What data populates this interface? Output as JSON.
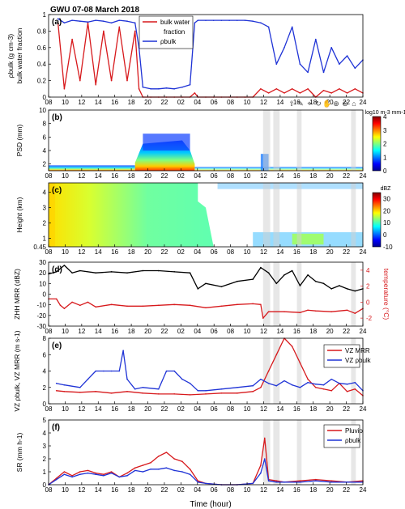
{
  "title": "GWU 07-08 March 2018",
  "colors": {
    "red": "#d7191c",
    "blue": "#1f33d6",
    "black": "#000000",
    "frame": "#000000",
    "grid": "#9a9a9a",
    "shade": "#cfcfcf"
  },
  "xaxis": {
    "label": "Time (hour)",
    "ticks": [
      "08",
      "10",
      "12",
      "14",
      "16",
      "18",
      "20",
      "22",
      "02",
      "04",
      "06",
      "08",
      "10",
      "12",
      "14",
      "16",
      "18",
      "20",
      "22",
      "24"
    ],
    "range_hours": [
      8,
      48
    ]
  },
  "shade_bands_hours": [
    [
      35.3,
      36.2
    ],
    [
      36.6,
      37.4
    ],
    [
      39.6,
      40.2
    ],
    [
      46.5,
      47.1
    ]
  ],
  "toolbar_icons": [
    "export-icon",
    "brush-icon",
    "datatip-icon",
    "rotate-icon",
    "pan-icon",
    "zoom-in-icon",
    "zoom-out-icon",
    "home-icon"
  ],
  "chart_data": [
    {
      "type": "line",
      "panel": "(a)",
      "ylabel_line1": "ρbulk (g cm-3)",
      "ylabel_line2": "bulk water fraction",
      "ylim": [
        0,
        1
      ],
      "yticks": [
        "0",
        "0.2",
        "0.4",
        "0.6",
        "0.8",
        "1"
      ],
      "legend": {
        "placement": "top",
        "entries": [
          {
            "name": "bulk water",
            "name2": "fraction",
            "color": "#d7191c"
          },
          {
            "name": "ρbulk",
            "color": "#1f33d6"
          }
        ]
      },
      "series": [
        {
          "name": "bulk water fraction",
          "color": "#d7191c",
          "x": [
            9.2,
            10,
            11,
            12,
            13,
            14,
            15,
            16,
            17,
            18,
            19,
            19.5,
            20,
            21,
            22,
            23,
            24,
            25,
            26,
            26.6,
            27,
            28,
            29,
            30,
            31,
            32,
            33,
            34,
            35,
            36,
            37,
            38,
            39,
            40,
            41,
            42,
            43,
            44,
            45,
            46,
            47,
            48
          ],
          "y": [
            0.9,
            0.1,
            0.7,
            0.2,
            0.9,
            0.15,
            0.8,
            0.2,
            0.85,
            0.2,
            0.8,
            0.1,
            0,
            0,
            0,
            0,
            0,
            0,
            0,
            0.05,
            0,
            0,
            0,
            0,
            0,
            0,
            0,
            0,
            0.1,
            0.05,
            0.1,
            0.05,
            0.1,
            0.05,
            0.1,
            0,
            0.08,
            0.05,
            0.1,
            0.05,
            0.1,
            0.05
          ]
        },
        {
          "name": "ρbulk",
          "color": "#1f33d6",
          "x": [
            9.2,
            10,
            11,
            12,
            13,
            14,
            15,
            16,
            17,
            18,
            19,
            19.5,
            20,
            21,
            22,
            23,
            24,
            25,
            26,
            26.6,
            27,
            28,
            29,
            30,
            31,
            32,
            33,
            34,
            35,
            36,
            37,
            38,
            39,
            40,
            41,
            42,
            43,
            44,
            45,
            46,
            47,
            48
          ],
          "y": [
            0.95,
            0.9,
            0.93,
            0.92,
            0.91,
            0.93,
            0.92,
            0.9,
            0.93,
            0.92,
            0.9,
            0.6,
            0.12,
            0.1,
            0.1,
            0.11,
            0.1,
            0.12,
            0.15,
            0.9,
            0.93,
            0.93,
            0.93,
            0.93,
            0.93,
            0.93,
            0.93,
            0.92,
            0.9,
            0.85,
            0.4,
            0.6,
            0.85,
            0.4,
            0.3,
            0.7,
            0.3,
            0.6,
            0.4,
            0.5,
            0.35,
            0.45
          ]
        }
      ]
    },
    {
      "type": "heatmap",
      "panel": "(b)",
      "ylabel": "PSD (mm)",
      "ylim": [
        1,
        10
      ],
      "yticks": [
        "2",
        "4",
        "6",
        "8",
        "10"
      ],
      "colorbar": {
        "ticks": [
          "0",
          "1",
          "2",
          "3",
          "4"
        ],
        "unit": "log10 m-3 mm-1",
        "range": [
          0,
          4
        ]
      }
    },
    {
      "type": "heatmap",
      "panel": "(c)",
      "ylabel": "Height (km)",
      "ylim": [
        0.45,
        4.6
      ],
      "yticks": [
        "0.45",
        "1",
        "2",
        "3",
        "4"
      ],
      "colorbar": {
        "ticks": [
          "-10",
          "0",
          "10",
          "20",
          "30"
        ],
        "unit": "dBZ",
        "range": [
          -10,
          35
        ]
      }
    },
    {
      "type": "line",
      "panel": "(d)",
      "ylabel_left": "ZHH MRR (dBZ)",
      "ylabel_right": "temperature (°C)",
      "ylim": [
        -30,
        30
      ],
      "yticks": [
        "-30",
        "-20",
        "-10",
        "0",
        "10",
        "20",
        "30"
      ],
      "ylim_right": [
        -3,
        5
      ],
      "yticks_right": [
        "-2",
        "0",
        "2",
        "4"
      ],
      "series": [
        {
          "name": "ZHH MRR",
          "color": "#000000",
          "axis": "left",
          "x": [
            8,
            9,
            10,
            11,
            12,
            14,
            16,
            18,
            20,
            22,
            24,
            26,
            27,
            28,
            30,
            32,
            34,
            35,
            36,
            37,
            38,
            39,
            40,
            41,
            42,
            43,
            44,
            45,
            46,
            47,
            48
          ],
          "y": [
            19,
            21,
            27,
            20,
            22,
            20,
            21,
            20,
            22,
            22,
            21,
            20,
            5,
            10,
            7,
            12,
            14,
            25,
            20,
            10,
            18,
            22,
            8,
            18,
            12,
            10,
            5,
            8,
            5,
            3,
            5
          ]
        },
        {
          "name": "temperature",
          "color": "#d7191c",
          "axis": "right",
          "x": [
            8,
            9,
            9.5,
            10,
            11,
            12,
            13,
            14,
            16,
            18,
            20,
            22,
            24,
            26,
            28,
            30,
            32,
            34,
            35,
            35.3,
            36,
            38,
            40,
            41,
            42,
            44,
            46,
            47,
            48
          ],
          "y": [
            0.4,
            0.4,
            -0.4,
            -0.8,
            0,
            -0.4,
            0,
            -0.6,
            -0.3,
            -0.5,
            -0.5,
            -0.4,
            -0.3,
            -0.4,
            -0.7,
            -0.5,
            -0.3,
            -0.2,
            -0.3,
            -2.0,
            -1.2,
            -1.2,
            -1.3,
            -1.0,
            -1.1,
            -1.2,
            -1.0,
            -1.4,
            -0.8
          ]
        }
      ]
    },
    {
      "type": "line",
      "panel": "(e)",
      "ylabel": "VZ ρbulk, VZ MRR (m s-1)",
      "ylim": [
        0,
        8
      ],
      "yticks": [
        "0",
        "2",
        "4",
        "6",
        "8"
      ],
      "legend": {
        "placement": "top-right",
        "entries": [
          {
            "name": "VZ MRR",
            "color": "#d7191c"
          },
          {
            "name": "VZ ρbulk",
            "color": "#1f33d6"
          }
        ]
      },
      "series": [
        {
          "name": "VZ MRR",
          "color": "#d7191c",
          "x": [
            9,
            10,
            12,
            14,
            16,
            18,
            20,
            22,
            24,
            26,
            28,
            30,
            32,
            34,
            35,
            36,
            37,
            38,
            39,
            40,
            41,
            42,
            43,
            44,
            45,
            46,
            47,
            48
          ],
          "y": [
            1.6,
            1.5,
            1.4,
            1.5,
            1.3,
            1.5,
            1.3,
            1.2,
            1.2,
            1.1,
            1.2,
            1.3,
            1.3,
            1.5,
            2,
            4,
            6,
            8,
            7,
            5,
            3,
            2,
            1.8,
            1.6,
            2.5,
            1.5,
            1.8,
            1
          ]
        },
        {
          "name": "VZ ρbulk",
          "color": "#1f33d6",
          "x": [
            9,
            10,
            12,
            13,
            14,
            15,
            16,
            17,
            17.5,
            18,
            19,
            20,
            22,
            23,
            24,
            25,
            26,
            27,
            28,
            30,
            32,
            34,
            35,
            36,
            37,
            38,
            39,
            40,
            41,
            42,
            43,
            44,
            45,
            46,
            47,
            48
          ],
          "y": [
            2.5,
            2.3,
            2,
            3,
            4,
            4,
            4,
            4,
            6.5,
            3,
            1.8,
            2,
            1.8,
            4,
            4,
            3,
            2.5,
            1.6,
            1.6,
            1.8,
            2,
            2.2,
            3,
            2.5,
            2.2,
            2.8,
            2.3,
            2,
            2.6,
            2.4,
            2.3,
            3,
            2.5,
            2.4,
            2.6,
            1.6
          ]
        }
      ]
    },
    {
      "type": "line",
      "panel": "(f)",
      "ylabel": "SR (mm h-1)",
      "ylim": [
        0,
        5
      ],
      "yticks": [
        "0",
        "1",
        "2",
        "3",
        "4",
        "5"
      ],
      "legend": {
        "placement": "top-right",
        "entries": [
          {
            "name": "Pluvio",
            "color": "#d7191c"
          },
          {
            "name": "ρbulk",
            "color": "#1f33d6"
          }
        ]
      },
      "series": [
        {
          "name": "Pluvio",
          "color": "#d7191c",
          "x": [
            8,
            9,
            10,
            11,
            12,
            13,
            14,
            15,
            16,
            17,
            18,
            19,
            20,
            21,
            22,
            23,
            24,
            25,
            26,
            27,
            28,
            30,
            32,
            34,
            35,
            35.5,
            36,
            37,
            38,
            40,
            42,
            44,
            46,
            48
          ],
          "y": [
            0,
            0.5,
            1.0,
            0.7,
            1.0,
            1.1,
            0.9,
            0.8,
            1.0,
            0.6,
            0.9,
            1.3,
            1.5,
            1.7,
            2.2,
            2.5,
            2.0,
            1.8,
            1.2,
            0.3,
            0.1,
            0,
            0,
            0.1,
            1.5,
            3.6,
            0.4,
            0.3,
            0.2,
            0.3,
            0.4,
            0.3,
            0.2,
            0.3
          ]
        },
        {
          "name": "ρbulk",
          "color": "#1f33d6",
          "x": [
            8,
            9,
            10,
            11,
            12,
            13,
            14,
            15,
            16,
            17,
            18,
            19,
            20,
            21,
            22,
            23,
            24,
            25,
            26,
            27,
            28,
            30,
            32,
            34,
            35,
            35.5,
            36,
            37,
            38,
            40,
            42,
            44,
            46,
            48
          ],
          "y": [
            0,
            0.4,
            0.8,
            0.6,
            0.8,
            0.9,
            0.8,
            0.7,
            0.9,
            0.6,
            0.7,
            1.1,
            1.0,
            1.2,
            1.2,
            1.3,
            1.1,
            1.0,
            0.8,
            0.2,
            0.1,
            0,
            0,
            0.1,
            0.9,
            2.0,
            0.3,
            0.2,
            0.2,
            0.2,
            0.3,
            0.2,
            0.2,
            0.2
          ]
        }
      ]
    }
  ]
}
